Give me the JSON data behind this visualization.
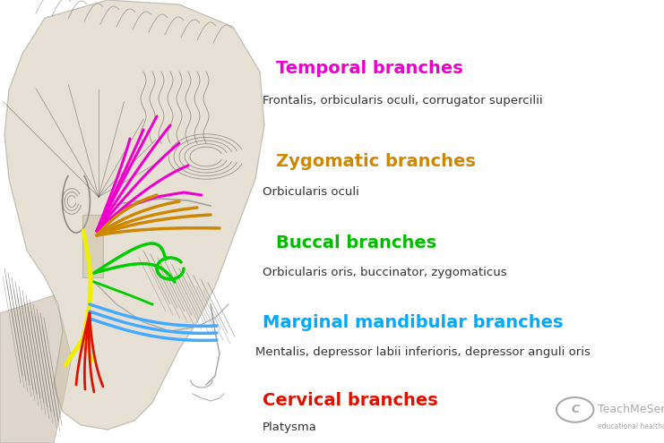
{
  "background_color": "#ffffff",
  "head_color": "#d4c8b0",
  "head_shadow": "#b8a890",
  "muscle_color": "#888880",
  "figsize": [
    7.41,
    4.95
  ],
  "dpi": 100,
  "labels": [
    {
      "heading": "Temporal branches",
      "heading_color": "#ee00cc",
      "subtext": "Frontalis, orbicularis oculi, corrugator supercilii",
      "subtext_color": "#333333",
      "hx": 0.415,
      "hy": 0.865,
      "sx": 0.395,
      "sy": 0.785
    },
    {
      "heading": "Zygomatic branches",
      "heading_color": "#cc8800",
      "subtext": "Orbicularis oculi",
      "subtext_color": "#333333",
      "hx": 0.415,
      "hy": 0.655,
      "sx": 0.395,
      "sy": 0.58
    },
    {
      "heading": "Buccal branches",
      "heading_color": "#00bb00",
      "subtext": "Orbicularis oris, buccinator, zygomaticus",
      "subtext_color": "#333333",
      "hx": 0.415,
      "hy": 0.47,
      "sx": 0.395,
      "sy": 0.398
    },
    {
      "heading": "Marginal mandibular branches",
      "heading_color": "#00aaff",
      "subtext": "Mentalis, depressor labii inferioris, depressor anguli oris",
      "subtext_color": "#333333",
      "hx": 0.395,
      "hy": 0.29,
      "sx": 0.385,
      "sy": 0.218
    },
    {
      "heading": "Cervical branches",
      "heading_color": "#dd1100",
      "subtext": "Platysma",
      "subtext_color": "#333333",
      "hx": 0.395,
      "hy": 0.115,
      "sx": 0.395,
      "sy": 0.048
    }
  ],
  "nerve_magenta": "#ee00cc",
  "nerve_orange": "#cc8800",
  "nerve_yellow": "#eeee00",
  "nerve_green": "#00cc00",
  "nerve_blue": "#44aaff",
  "nerve_red": "#dd1100",
  "watermark_text": "TeachMeSeries",
  "watermark_color": "#aaaaaa"
}
